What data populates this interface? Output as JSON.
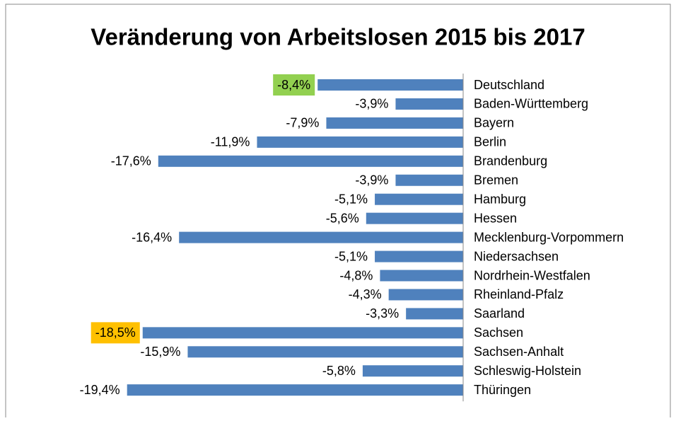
{
  "chart_data": {
    "type": "hbar",
    "title": "Veränderung von Arbeitslosen 2015 bis 2017",
    "categories": [
      "Deutschland",
      "Baden-Württemberg",
      "Bayern",
      "Berlin",
      "Brandenburg",
      "Bremen",
      "Hamburg",
      "Hessen",
      "Mecklenburg-Vorpommern",
      "Niedersachsen",
      "Nordrhein-Westfalen",
      "Rheinland-Pfalz",
      "Saarland",
      "Sachsen",
      "Sachsen-Anhalt",
      "Schleswig-Holstein",
      "Thüringen"
    ],
    "values": [
      -8.4,
      -3.9,
      -7.9,
      -11.9,
      -17.6,
      -3.9,
      -5.1,
      -5.6,
      -16.4,
      -5.1,
      -4.8,
      -4.3,
      -3.3,
      -18.5,
      -15.9,
      -5.8,
      -19.4
    ],
    "value_labels": [
      "-8,4%",
      "-3,9%",
      "-7,9%",
      "-11,9%",
      "-17,6%",
      "-3,9%",
      "-5,1%",
      "-5,6%",
      "-16,4%",
      "-5,1%",
      "-4,8%",
      "-4,3%",
      "-3,3%",
      "-18,5%",
      "-15,9%",
      "-5,8%",
      "-19,4%"
    ],
    "label_backgrounds": [
      "#92d050",
      null,
      null,
      null,
      null,
      null,
      null,
      null,
      null,
      null,
      null,
      null,
      null,
      "#ffc000",
      null,
      null,
      null
    ],
    "color": "#4f81bd",
    "xlim": [
      -20,
      0
    ]
  }
}
